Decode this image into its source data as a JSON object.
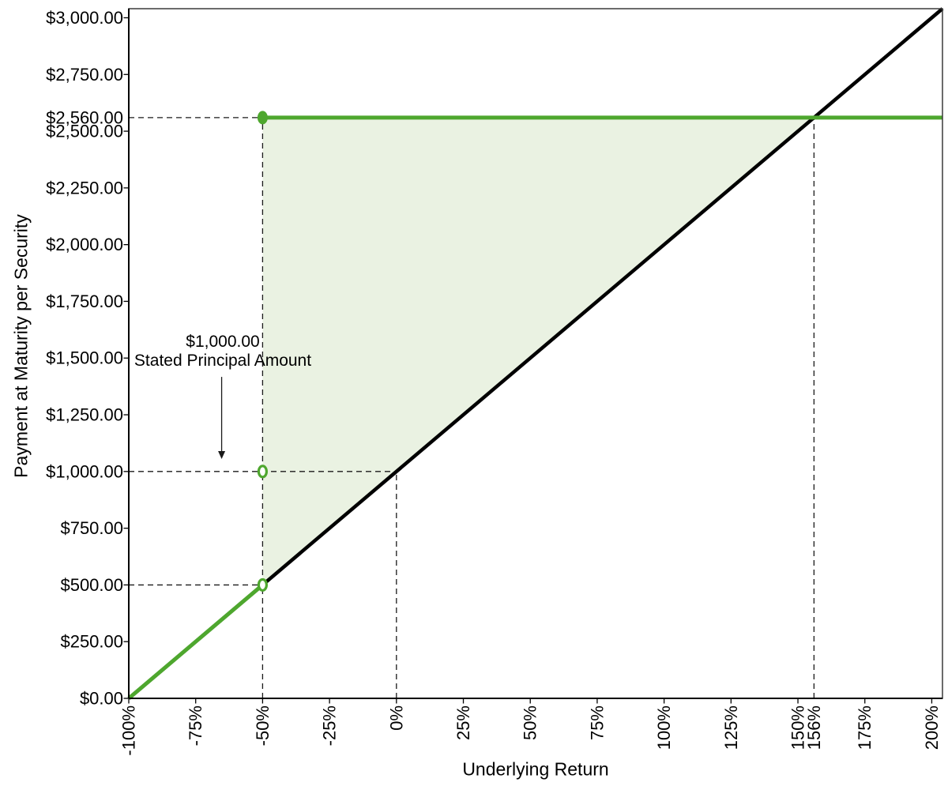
{
  "chart_data": {
    "type": "line",
    "title": "",
    "xlabel": "Underlying Return",
    "ylabel": "Payment at Maturity per Security",
    "xlim": [
      -100,
      204
    ],
    "ylim": [
      0,
      3040
    ],
    "grid": false,
    "legend": "none",
    "colors": {
      "payout_green": "#4EA72E",
      "underlying_black": "#000000",
      "shade_fill": "#EAF2E2",
      "dashed_line": "#1a1a1a",
      "axis": "#000000",
      "border": "#3a3a3a"
    },
    "x_ticks": [
      {
        "v": -100,
        "label": "-100%"
      },
      {
        "v": -75,
        "label": "-75%"
      },
      {
        "v": -50,
        "label": "-50%"
      },
      {
        "v": -25,
        "label": "-25%"
      },
      {
        "v": 0,
        "label": "0%"
      },
      {
        "v": 25,
        "label": "25%"
      },
      {
        "v": 50,
        "label": "50%"
      },
      {
        "v": 75,
        "label": "75%"
      },
      {
        "v": 100,
        "label": "100%"
      },
      {
        "v": 125,
        "label": "125%"
      },
      {
        "v": 150,
        "label": "150%"
      },
      {
        "v": 156,
        "label": "156%"
      },
      {
        "v": 175,
        "label": "175%"
      },
      {
        "v": 200,
        "label": "200%"
      }
    ],
    "y_ticks": [
      {
        "v": 0,
        "label": "$0.00"
      },
      {
        "v": 250,
        "label": "$250.00"
      },
      {
        "v": 500,
        "label": "$500.00"
      },
      {
        "v": 750,
        "label": "$750.00"
      },
      {
        "v": 1000,
        "label": "$1,000.00"
      },
      {
        "v": 1250,
        "label": "$1,250.00"
      },
      {
        "v": 1500,
        "label": "$1,500.00"
      },
      {
        "v": 1750,
        "label": "$1,750.00"
      },
      {
        "v": 2000,
        "label": "$2,000.00"
      },
      {
        "v": 2250,
        "label": "$2,250.00"
      },
      {
        "v": 2500,
        "label": "$2,500.00"
      },
      {
        "v": 2560,
        "label": "$2,560.00"
      },
      {
        "v": 2750,
        "label": "$2,750.00"
      },
      {
        "v": 3000,
        "label": "$3,000.00"
      }
    ],
    "series": [
      {
        "name": "underlying-return-line",
        "color": "#000000",
        "width": 4.5,
        "points": [
          [
            -100,
            0
          ],
          [
            204,
            3040
          ]
        ]
      },
      {
        "name": "payment-below-threshold",
        "color": "#4EA72E",
        "width": 5,
        "points": [
          [
            -100,
            0
          ],
          [
            -50,
            500
          ]
        ]
      },
      {
        "name": "payment-capped",
        "color": "#4EA72E",
        "width": 5,
        "points": [
          [
            -50,
            2560
          ],
          [
            204,
            2560
          ]
        ]
      }
    ],
    "shade": {
      "fill": "#EAF2E2",
      "points": [
        [
          -50,
          500
        ],
        [
          -50,
          2560
        ],
        [
          156,
          2560
        ]
      ]
    },
    "dashed_lines": [
      {
        "x1": -100,
        "y1": 2560,
        "x2": -50,
        "y2": 2560
      },
      {
        "x1": -100,
        "y1": 1000,
        "x2": 0,
        "y2": 1000
      },
      {
        "x1": -100,
        "y1": 500,
        "x2": -50,
        "y2": 500
      },
      {
        "x1": -50,
        "y1": 0,
        "x2": -50,
        "y2": 2560
      },
      {
        "x1": 0,
        "y1": 0,
        "x2": 0,
        "y2": 1000
      },
      {
        "x1": 156,
        "y1": 0,
        "x2": 156,
        "y2": 2560
      }
    ],
    "markers": [
      {
        "x": -50,
        "y": 2560,
        "style": "filled"
      },
      {
        "x": -50,
        "y": 1000,
        "style": "open"
      },
      {
        "x": -50,
        "y": 500,
        "style": "open"
      }
    ],
    "annotation": {
      "line1": "$1,000.00",
      "line2": "Stated Principal Amount",
      "arrow": {
        "x": -65.3,
        "y_from": 1417,
        "y_to": 1055
      }
    }
  }
}
